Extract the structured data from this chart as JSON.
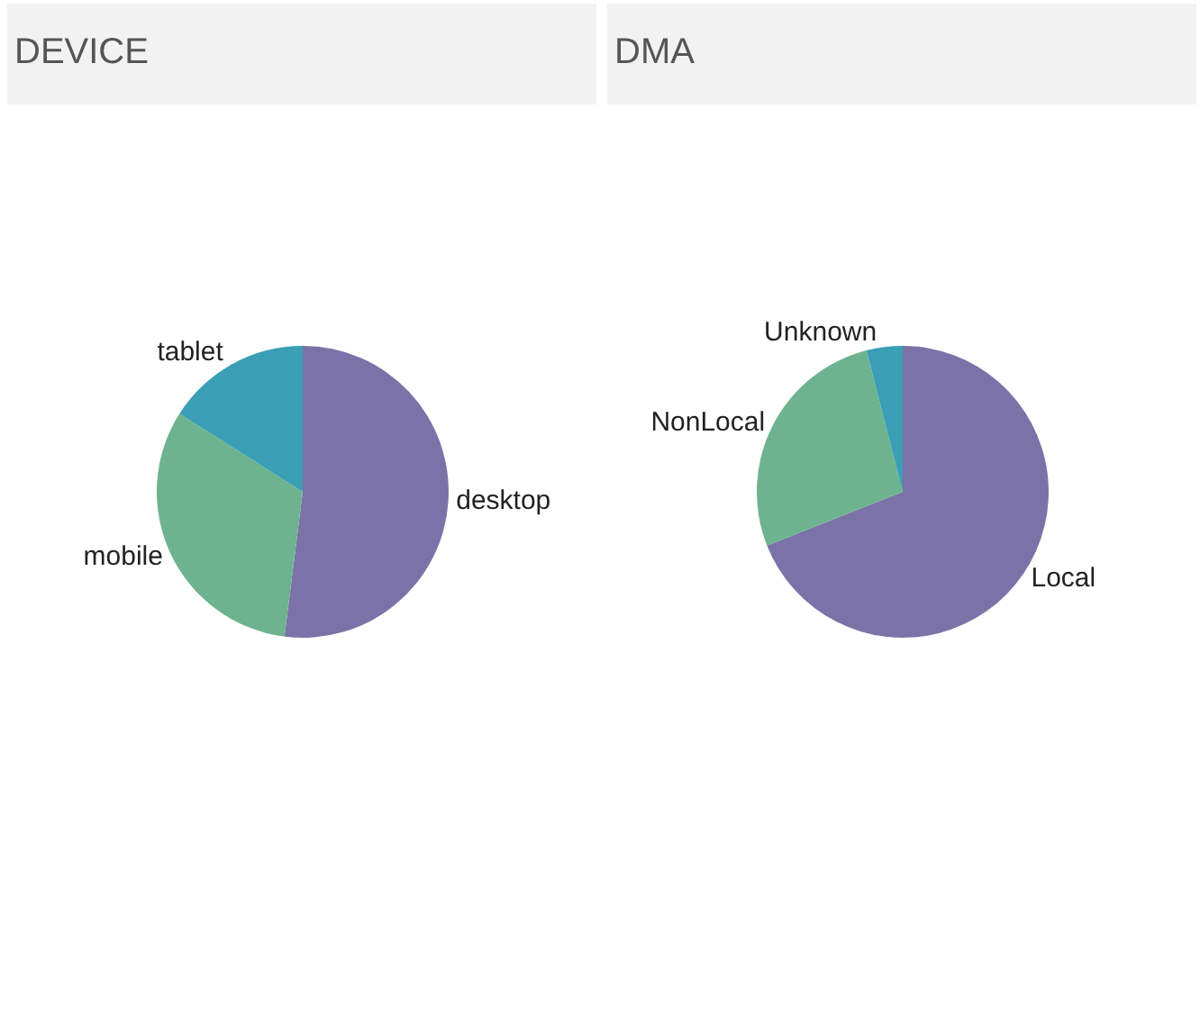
{
  "chart_data": [
    {
      "type": "pie",
      "title": "DEVICE",
      "categories": [
        "desktop",
        "mobile",
        "tablet"
      ],
      "values": [
        52,
        32,
        16
      ],
      "colors": [
        "#7b73a8",
        "#6db38f",
        "#3a9fb5"
      ]
    },
    {
      "type": "pie",
      "title": "DMA",
      "categories": [
        "Local",
        "NonLocal",
        "Unknown"
      ],
      "values": [
        69,
        27,
        4
      ],
      "colors": [
        "#7b73a8",
        "#6db38f",
        "#3a9fb5"
      ]
    }
  ]
}
